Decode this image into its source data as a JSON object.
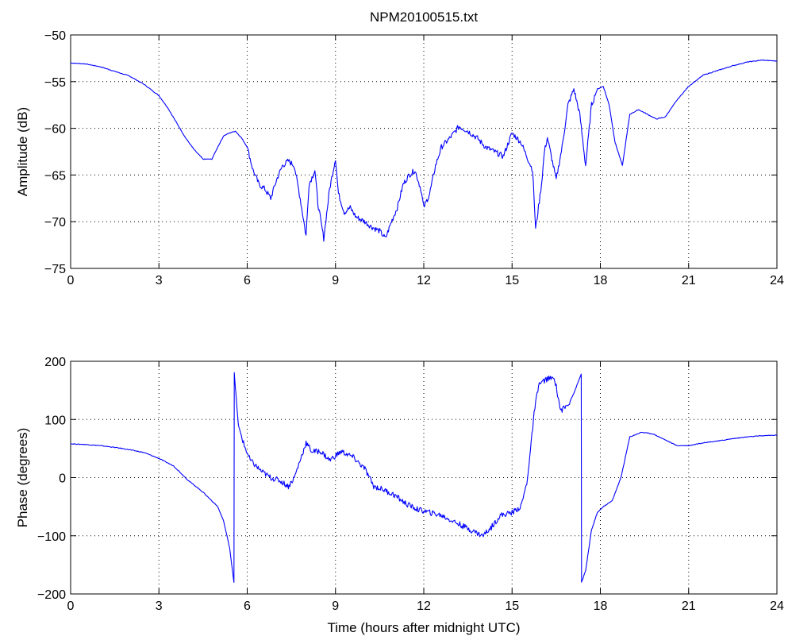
{
  "chart_data": [
    {
      "type": "line",
      "title": "NPM20100515.txt",
      "xlabel": "",
      "ylabel": "Amplitude (dB)",
      "xlim": [
        0,
        24
      ],
      "ylim": [
        -75,
        -50
      ],
      "xticks": [
        0,
        3,
        6,
        9,
        12,
        15,
        18,
        21,
        24
      ],
      "yticks": [
        -75,
        -70,
        -65,
        -60,
        -55,
        -50
      ],
      "xtick_labels": [
        "0",
        "3",
        "6",
        "9",
        "12",
        "15",
        "18",
        "21",
        "24"
      ],
      "ytick_labels": [
        "−75",
        "−70",
        "−65",
        "−60",
        "−55",
        "−50"
      ],
      "grid": true,
      "color": "#0000ff",
      "series": [
        {
          "x": [
            0,
            0.5,
            1,
            1.5,
            2,
            2.5,
            3,
            3.3,
            3.6,
            3.9,
            4.2,
            4.5,
            4.8,
            5.0,
            5.2,
            5.4,
            5.6,
            5.8,
            6.0,
            6.2,
            6.4,
            6.6,
            6.8,
            7.0,
            7.2,
            7.4,
            7.6,
            7.8,
            8.0,
            8.1,
            8.3,
            8.4,
            8.6,
            8.8,
            9.0,
            9.1,
            9.3,
            9.5,
            9.7,
            10.0,
            10.2,
            10.5,
            10.7,
            10.9,
            11.1,
            11.3,
            11.5,
            11.7,
            11.9,
            12.0,
            12.2,
            12.4,
            12.6,
            12.9,
            13.2,
            13.5,
            13.8,
            14.1,
            14.4,
            14.7,
            15.0,
            15.3,
            15.5,
            15.7,
            15.8,
            16.0,
            16.1,
            16.2,
            16.5,
            16.7,
            16.9,
            17.1,
            17.3,
            17.5,
            17.7,
            17.9,
            18.1,
            18.3,
            18.5,
            18.75,
            19.0,
            19.3,
            19.6,
            19.9,
            20.2,
            20.6,
            21.0,
            21.5,
            22.0,
            22.5,
            23.0,
            23.5,
            24.0
          ],
          "y": [
            -53.0,
            -53.1,
            -53.4,
            -53.9,
            -54.4,
            -55.3,
            -56.5,
            -57.8,
            -59.4,
            -61.0,
            -62.3,
            -63.3,
            -63.3,
            -62.0,
            -60.8,
            -60.5,
            -60.3,
            -61.0,
            -62.0,
            -64.5,
            -66.0,
            -66.5,
            -67.5,
            -65.5,
            -64.0,
            -63.5,
            -64.0,
            -67.5,
            -71.5,
            -66.0,
            -64.5,
            -68.0,
            -71.8,
            -66.5,
            -63.2,
            -67.0,
            -69.0,
            -68.5,
            -69.5,
            -70.0,
            -70.5,
            -71.0,
            -71.8,
            -70.0,
            -68.5,
            -66.0,
            -65.0,
            -64.5,
            -66.5,
            -68.5,
            -67.0,
            -64.0,
            -62.0,
            -61.0,
            -59.8,
            -60.3,
            -61.0,
            -62.0,
            -62.5,
            -63.0,
            -60.5,
            -61.5,
            -63.0,
            -64.5,
            -70.8,
            -66.0,
            -62.5,
            -61.0,
            -65.5,
            -62.0,
            -57.5,
            -55.8,
            -58.5,
            -64.0,
            -57.5,
            -55.8,
            -55.5,
            -57.5,
            -61.5,
            -64.0,
            -58.5,
            -58.0,
            -58.5,
            -59.0,
            -58.8,
            -57.0,
            -55.5,
            -54.3,
            -53.8,
            -53.3,
            -52.9,
            -52.7,
            -52.8
          ]
        }
      ]
    },
    {
      "type": "line",
      "title": "",
      "xlabel": "Time (hours after midnight UTC)",
      "ylabel": "Phase (degrees)",
      "xlim": [
        0,
        24
      ],
      "ylim": [
        -200,
        200
      ],
      "xticks": [
        0,
        3,
        6,
        9,
        12,
        15,
        18,
        21,
        24
      ],
      "yticks": [
        -200,
        -100,
        0,
        100,
        200
      ],
      "xtick_labels": [
        "0",
        "3",
        "6",
        "9",
        "12",
        "15",
        "18",
        "21",
        "24"
      ],
      "ytick_labels": [
        "−200",
        "−100",
        "0",
        "100",
        "200"
      ],
      "grid": true,
      "color": "#0000ff",
      "series": [
        {
          "x": [
            0,
            0.5,
            1,
            1.5,
            2,
            2.5,
            3,
            3.5,
            4,
            4.5,
            5,
            5.2,
            5.4,
            5.55,
            5.56,
            5.7,
            5.9,
            6.1,
            6.3,
            6.5,
            6.8,
            7.1,
            7.4,
            7.6,
            7.8,
            8.0,
            8.2,
            8.5,
            8.8,
            9.2,
            9.6,
            10.0,
            10.3,
            10.6,
            11.0,
            11.4,
            11.8,
            12.2,
            12.6,
            13.0,
            13.4,
            13.8,
            14.0,
            14.3,
            14.6,
            15.0,
            15.3,
            15.5,
            15.6,
            15.75,
            15.9,
            16.2,
            16.45,
            16.65,
            16.9,
            17.1,
            17.35,
            17.36,
            17.5,
            17.7,
            17.9,
            18.1,
            18.4,
            18.7,
            19.0,
            19.4,
            19.8,
            20.2,
            20.6,
            21.0,
            21.5,
            22.0,
            22.5,
            23.0,
            23.5,
            24.0
          ],
          "y": [
            58,
            57,
            55,
            52,
            48,
            43,
            33,
            20,
            -5,
            -25,
            -50,
            -75,
            -120,
            -180,
            180,
            90,
            55,
            30,
            20,
            10,
            0,
            -5,
            -15,
            0,
            30,
            60,
            45,
            45,
            30,
            45,
            35,
            15,
            -15,
            -20,
            -30,
            -45,
            -55,
            -60,
            -65,
            -75,
            -85,
            -95,
            -100,
            -85,
            -65,
            -60,
            -50,
            -10,
            35,
            110,
            160,
            170,
            170,
            115,
            125,
            145,
            178,
            -180,
            -160,
            -90,
            -60,
            -50,
            -40,
            0,
            70,
            78,
            75,
            65,
            55,
            55,
            60,
            63,
            67,
            70,
            72,
            73
          ]
        }
      ]
    }
  ]
}
